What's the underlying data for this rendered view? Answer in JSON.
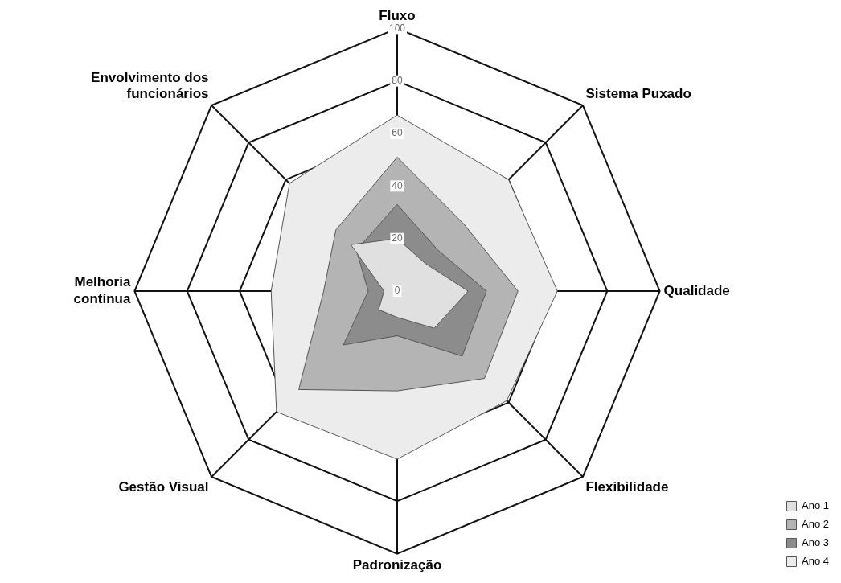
{
  "chart_data": {
    "type": "radar",
    "categories": [
      "Fluxo",
      "Sistema Puxado",
      "Qualidade",
      "Flexibilidade",
      "Padronização",
      "Gestão Visual",
      "Melhoria contínua",
      "Envolvimento dos funcionários"
    ],
    "series": [
      {
        "name": "Ano 1",
        "color": "#e0e0e0",
        "values": [
          20,
          15,
          27,
          20,
          10,
          10,
          5,
          25
        ]
      },
      {
        "name": "Ano 2",
        "color": "#b4b4b4",
        "values": [
          51,
          36,
          46,
          47,
          38,
          53,
          28,
          33
        ]
      },
      {
        "name": "Ano 3",
        "color": "#8c8c8c",
        "values": [
          33,
          22,
          34,
          35,
          17,
          29,
          11,
          22
        ]
      },
      {
        "name": "Ano 4",
        "color": "#ececec",
        "values": [
          67,
          60,
          61,
          59,
          64,
          65,
          48,
          58
        ]
      }
    ],
    "ylim": [
      0,
      100
    ],
    "yticks": [
      0,
      20,
      40,
      60,
      80,
      100
    ],
    "grid": true,
    "legend": "bottom right"
  }
}
